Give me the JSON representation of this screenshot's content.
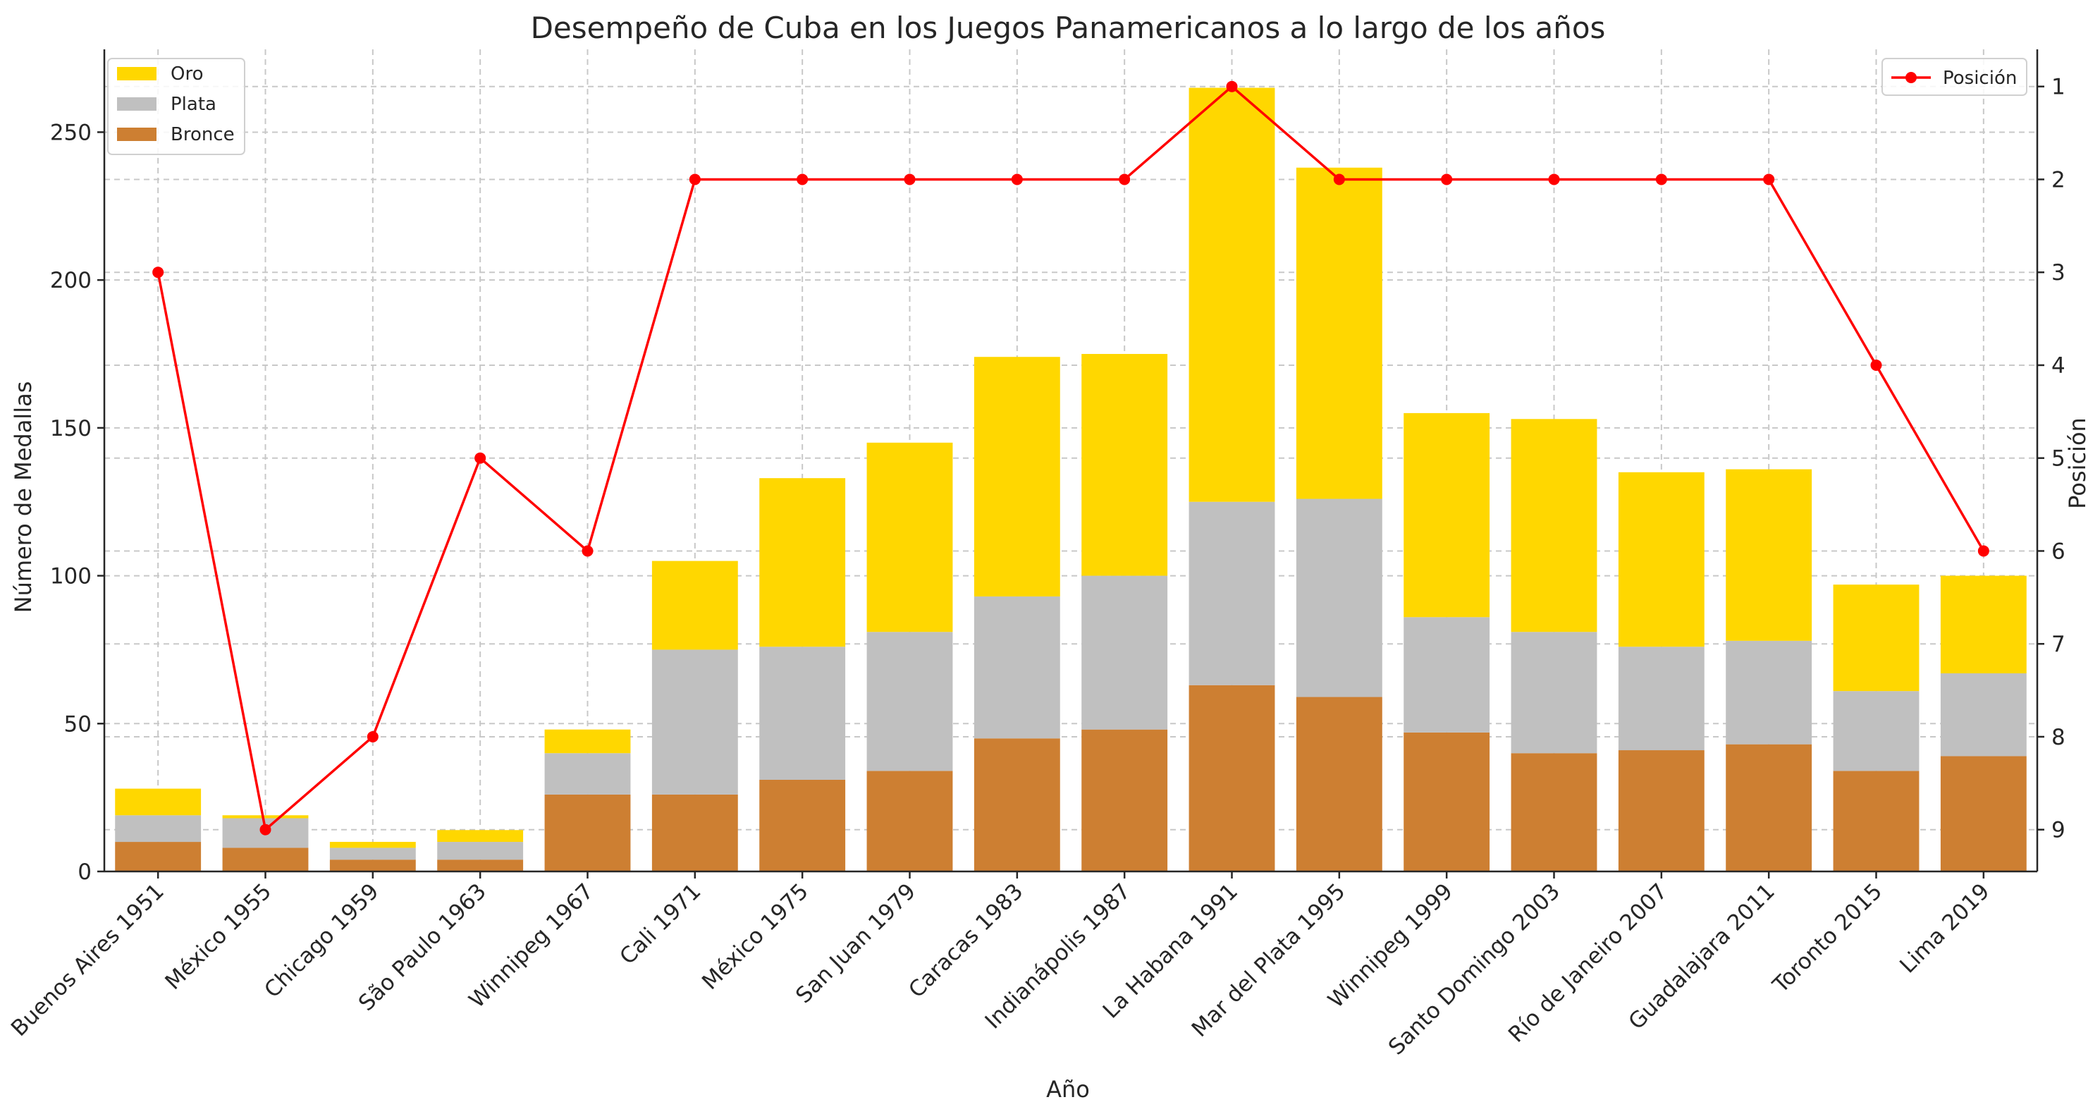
{
  "chart_data": {
    "type": "bar",
    "stacked": true,
    "title": "Desempeño de Cuba en los Juegos Panamericanos a lo largo de los años",
    "xlabel": "Año",
    "ylabel": "Número de Medallas",
    "y2label": "Posición",
    "ylim": [
      0,
      278
    ],
    "y2lim": [
      9.45,
      0.6
    ],
    "y2_inverted": true,
    "yticks": [
      0,
      50,
      100,
      150,
      200,
      250
    ],
    "y2ticks": [
      1,
      2,
      3,
      4,
      5,
      6,
      7,
      8,
      9
    ],
    "grid": true,
    "legend_left_position": "top-left",
    "legend_right_position": "top-right",
    "categories": [
      "Buenos Aires 1951",
      "México 1955",
      "Chicago 1959",
      "São Paulo 1963",
      "Winnipeg 1967",
      "Cali 1971",
      "México 1975",
      "San Juan 1979",
      "Caracas 1983",
      "Indianápolis 1987",
      "La Habana 1991",
      "Mar del Plata 1995",
      "Winnipeg 1999",
      "Santo Domingo 2003",
      "Río de Janeiro 2007",
      "Guadalajara 2011",
      "Toronto 2015",
      "Lima 2019"
    ],
    "series": [
      {
        "name": "Bronce",
        "color": "#cd7f32",
        "values": [
          10,
          8,
          4,
          4,
          26,
          26,
          31,
          34,
          45,
          48,
          63,
          59,
          47,
          40,
          41,
          43,
          34,
          39
        ]
      },
      {
        "name": "Plata",
        "color": "#c0c0c0",
        "values": [
          9,
          10,
          4,
          6,
          14,
          49,
          45,
          47,
          48,
          52,
          62,
          67,
          39,
          41,
          35,
          35,
          27,
          28
        ]
      },
      {
        "name": "Oro",
        "color": "#ffd700",
        "values": [
          9,
          1,
          2,
          4,
          8,
          30,
          57,
          64,
          81,
          75,
          140,
          112,
          69,
          72,
          59,
          58,
          36,
          33
        ]
      }
    ],
    "line_series": {
      "name": "Posición",
      "color": "#ff0000",
      "values": [
        3,
        9,
        8,
        5,
        6,
        2,
        2,
        2,
        2,
        2,
        1,
        2,
        2,
        2,
        2,
        2,
        4,
        6
      ]
    },
    "legend_order": [
      "Oro",
      "Plata",
      "Bronce"
    ]
  }
}
